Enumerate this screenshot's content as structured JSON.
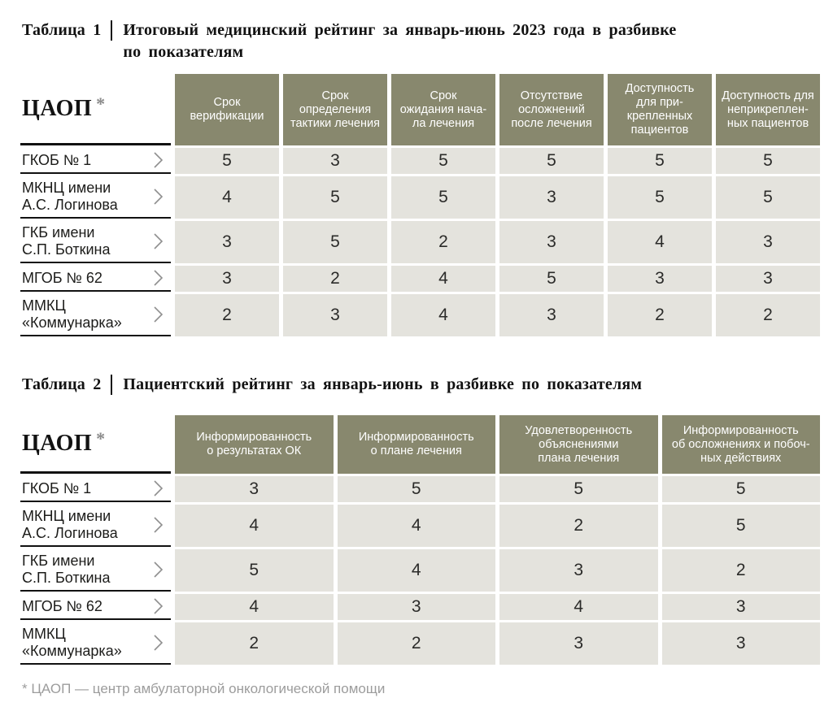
{
  "colors": {
    "header_bg": "#88886e",
    "cell_bg": "#e4e3dd",
    "rule": "#111111",
    "title_text": "#121212",
    "header_text": "#ffffff",
    "footnote_text": "#9c9c9c"
  },
  "icons": {
    "row_chevron": "chevron-right-icon"
  },
  "footnote": "* ЦАОП — центр амбулаторной онкологической помощи",
  "tables": [
    {
      "label": "Таблица 1",
      "title": "Итоговый медицинский рейтинг за январь-июнь 2023 года в разбивке\nпо показателям",
      "corner": "ЦАОП",
      "corner_note": "*",
      "columns": [
        "Срок\nверификации",
        "Срок\nопределения\nтактики лечения",
        "Срок\nожидания нача-\nла лечения",
        "Отсутствие\nосложнений\nпосле лечения",
        "Доступность\nдля при-\nкрепленных\nпациентов",
        "Доступность для\nнеприкреплен-\nных пациентов"
      ],
      "rows": [
        {
          "name": "ГКОБ № 1",
          "values": [
            5,
            3,
            5,
            5,
            5,
            5
          ]
        },
        {
          "name": "МКНЦ имени\nА.С. Логинова",
          "values": [
            4,
            5,
            5,
            3,
            5,
            5
          ]
        },
        {
          "name": "ГКБ имени\nС.П. Боткина",
          "values": [
            3,
            5,
            2,
            3,
            4,
            3
          ]
        },
        {
          "name": "МГОБ № 62",
          "values": [
            3,
            2,
            4,
            5,
            3,
            3
          ]
        },
        {
          "name": "ММКЦ\n«Коммунарка»",
          "values": [
            2,
            3,
            4,
            3,
            2,
            2
          ]
        }
      ]
    },
    {
      "label": "Таблица 2",
      "title": "Пациентский рейтинг за январь-июнь в разбивке по показателям",
      "corner": "ЦАОП",
      "corner_note": "*",
      "columns": [
        "Информированность\nо результатах ОК",
        "Информированность\nо плане лечения",
        "Удовлетворенность\nобъяснениями\nплана лечения",
        "Информированность\nоб осложнениях и побоч-\nных действиях"
      ],
      "rows": [
        {
          "name": "ГКОБ № 1",
          "values": [
            3,
            5,
            5,
            5
          ]
        },
        {
          "name": "МКНЦ имени\nА.С. Логинова",
          "values": [
            4,
            4,
            2,
            5
          ]
        },
        {
          "name": "ГКБ имени\nС.П. Боткина",
          "values": [
            5,
            4,
            3,
            2
          ]
        },
        {
          "name": "МГОБ № 62",
          "values": [
            4,
            3,
            4,
            3
          ]
        },
        {
          "name": "ММКЦ\n«Коммунарка»",
          "values": [
            2,
            2,
            3,
            3
          ]
        }
      ]
    }
  ]
}
